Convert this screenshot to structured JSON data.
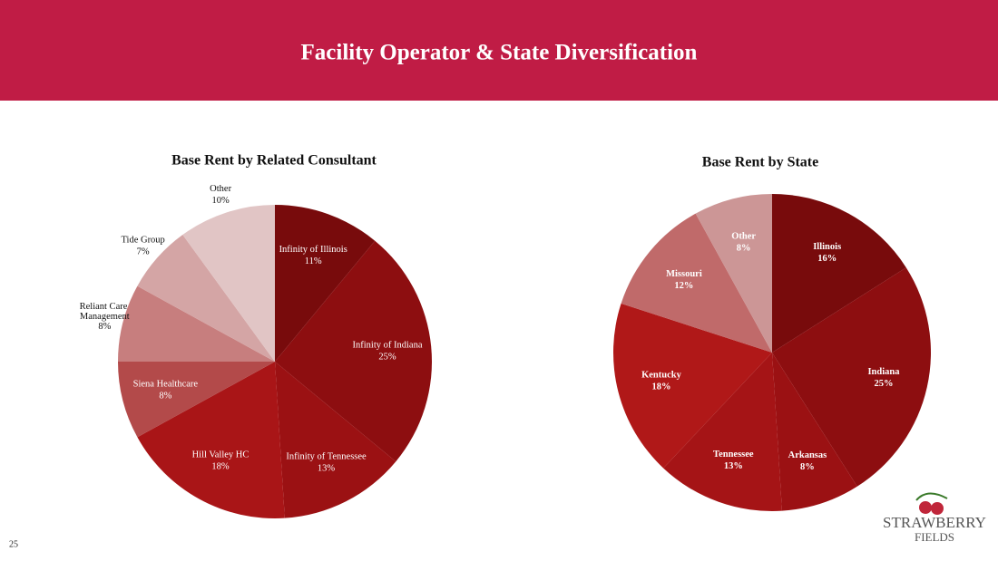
{
  "title": "Facility Operator & State Diversification",
  "page_number": "25",
  "logo": {
    "line1": "STRAWBERRY",
    "line2": "FIELDS"
  },
  "chart_data": [
    {
      "type": "pie",
      "title": "Base Rent by Related Consultant",
      "categories": [
        "Infinity of Illinois",
        "Infinity of Indiana",
        "Infinity of Tennessee",
        "Hill Valley HC",
        "Siena Healthcare",
        "Reliant Care Management",
        "Tide Group",
        "Other"
      ],
      "values": [
        11,
        25,
        13,
        18,
        8,
        8,
        7,
        10
      ],
      "value_labels": [
        "11%",
        "25%",
        "13%",
        "18%",
        "8%",
        "8%",
        "7%",
        "10%"
      ],
      "colors": [
        "#780b0c",
        "#8d0e10",
        "#9b1113",
        "#a91517",
        "#b34a4a",
        "#c77e7e",
        "#d4a5a5",
        "#e1c5c5"
      ]
    },
    {
      "type": "pie",
      "title": "Base Rent by State",
      "categories": [
        "Illinois",
        "Indiana",
        "Arkansas",
        "Tennessee",
        "Kentucky",
        "Missouri",
        "Other"
      ],
      "values": [
        16,
        25,
        8,
        13,
        18,
        12,
        8
      ],
      "value_labels": [
        "16%",
        "25%",
        "8%",
        "13%",
        "18%",
        "12%",
        "8%"
      ],
      "colors": [
        "#780b0c",
        "#8d0e10",
        "#9b1113",
        "#a51416",
        "#b01818",
        "#c06a6a",
        "#cc9696"
      ]
    }
  ]
}
